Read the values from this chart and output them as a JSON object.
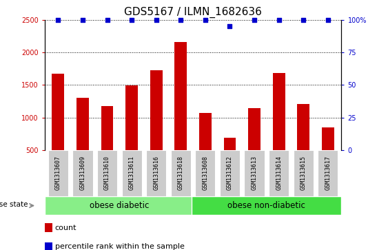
{
  "title": "GDS5167 / ILMN_1682636",
  "samples": [
    "GSM1313607",
    "GSM1313609",
    "GSM1313610",
    "GSM1313611",
    "GSM1313616",
    "GSM1313618",
    "GSM1313608",
    "GSM1313612",
    "GSM1313613",
    "GSM1313614",
    "GSM1313615",
    "GSM1313617"
  ],
  "counts": [
    1670,
    1300,
    1175,
    1490,
    1730,
    2160,
    1070,
    685,
    1140,
    1680,
    1210,
    850
  ],
  "percentile_ranks": [
    100,
    100,
    100,
    100,
    100,
    100,
    100,
    95,
    100,
    100,
    100,
    100
  ],
  "bar_color": "#cc0000",
  "percentile_color": "#0000cc",
  "ylim_left": [
    500,
    2500
  ],
  "ylim_right": [
    0,
    100
  ],
  "yticks_left": [
    500,
    1000,
    1500,
    2000,
    2500
  ],
  "yticks_right": [
    0,
    25,
    50,
    75,
    100
  ],
  "groups": [
    {
      "label": "obese diabetic",
      "start": 0,
      "end": 6,
      "color": "#88ee88"
    },
    {
      "label": "obese non-diabetic",
      "start": 6,
      "end": 12,
      "color": "#44dd44"
    }
  ],
  "disease_state_label": "disease state",
  "legend_items": [
    {
      "color": "#cc0000",
      "label": "count"
    },
    {
      "color": "#0000cc",
      "label": "percentile rank within the sample"
    }
  ],
  "title_fontsize": 11,
  "tick_fontsize": 7,
  "sample_fontsize": 6,
  "legend_fontsize": 8,
  "group_fontsize": 8.5,
  "label_bg_color": "#cccccc",
  "plot_bg_color": "#ffffff"
}
